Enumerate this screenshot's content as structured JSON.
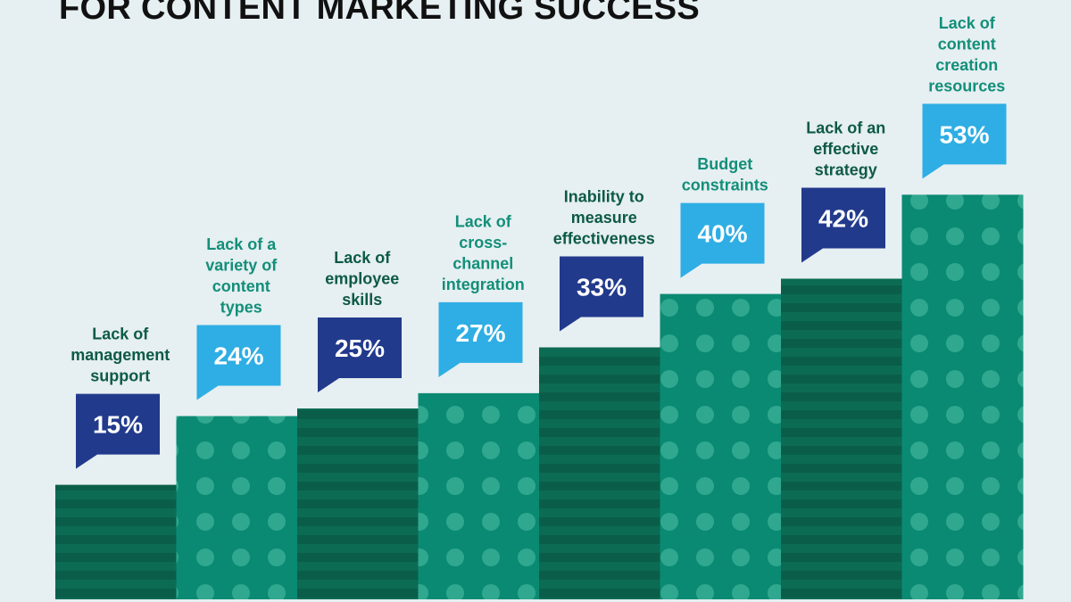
{
  "title": "FOR CONTENT MARKETING SUCCESS",
  "colors": {
    "background": "#e6eff2",
    "bar_dark": "#0a5e49",
    "bar_light": "#0a8a72",
    "dots": "#2fa88f",
    "stripe": "#0c6b53",
    "bubble_dark": "#223a8c",
    "bubble_light": "#2eaee4",
    "label_text": "#0d5a47",
    "label_text_alt": "#138f79"
  },
  "chart_data": {
    "type": "bar",
    "unit": "%",
    "ylim": [
      0,
      60
    ],
    "categories": [
      [
        "Lack of",
        "management",
        "support"
      ],
      [
        "Lack of a",
        "variety of",
        "content",
        "types"
      ],
      [
        "Lack of",
        "employee",
        "skills"
      ],
      [
        "Lack of",
        "cross-",
        "channel",
        "integration"
      ],
      [
        "Inability to",
        "measure",
        "effectiveness"
      ],
      [
        "Budget",
        "constraints"
      ],
      [
        "Lack of an",
        "effective",
        "strategy"
      ],
      [
        "Lack of",
        "content",
        "creation",
        "resources"
      ]
    ],
    "values": [
      15,
      24,
      25,
      27,
      33,
      40,
      42,
      53
    ],
    "value_labels": [
      "15%",
      "24%",
      "25%",
      "27%",
      "33%",
      "40%",
      "42%",
      "53%"
    ],
    "bar_styles": [
      "dark-striped",
      "light-dotted",
      "dark-striped",
      "light-dotted",
      "dark-striped",
      "light-dotted",
      "dark-striped",
      "light-dotted"
    ],
    "bubble_styles": [
      "dark",
      "light",
      "dark",
      "light",
      "dark",
      "light",
      "dark",
      "light"
    ],
    "grid": false,
    "legend": "none"
  }
}
